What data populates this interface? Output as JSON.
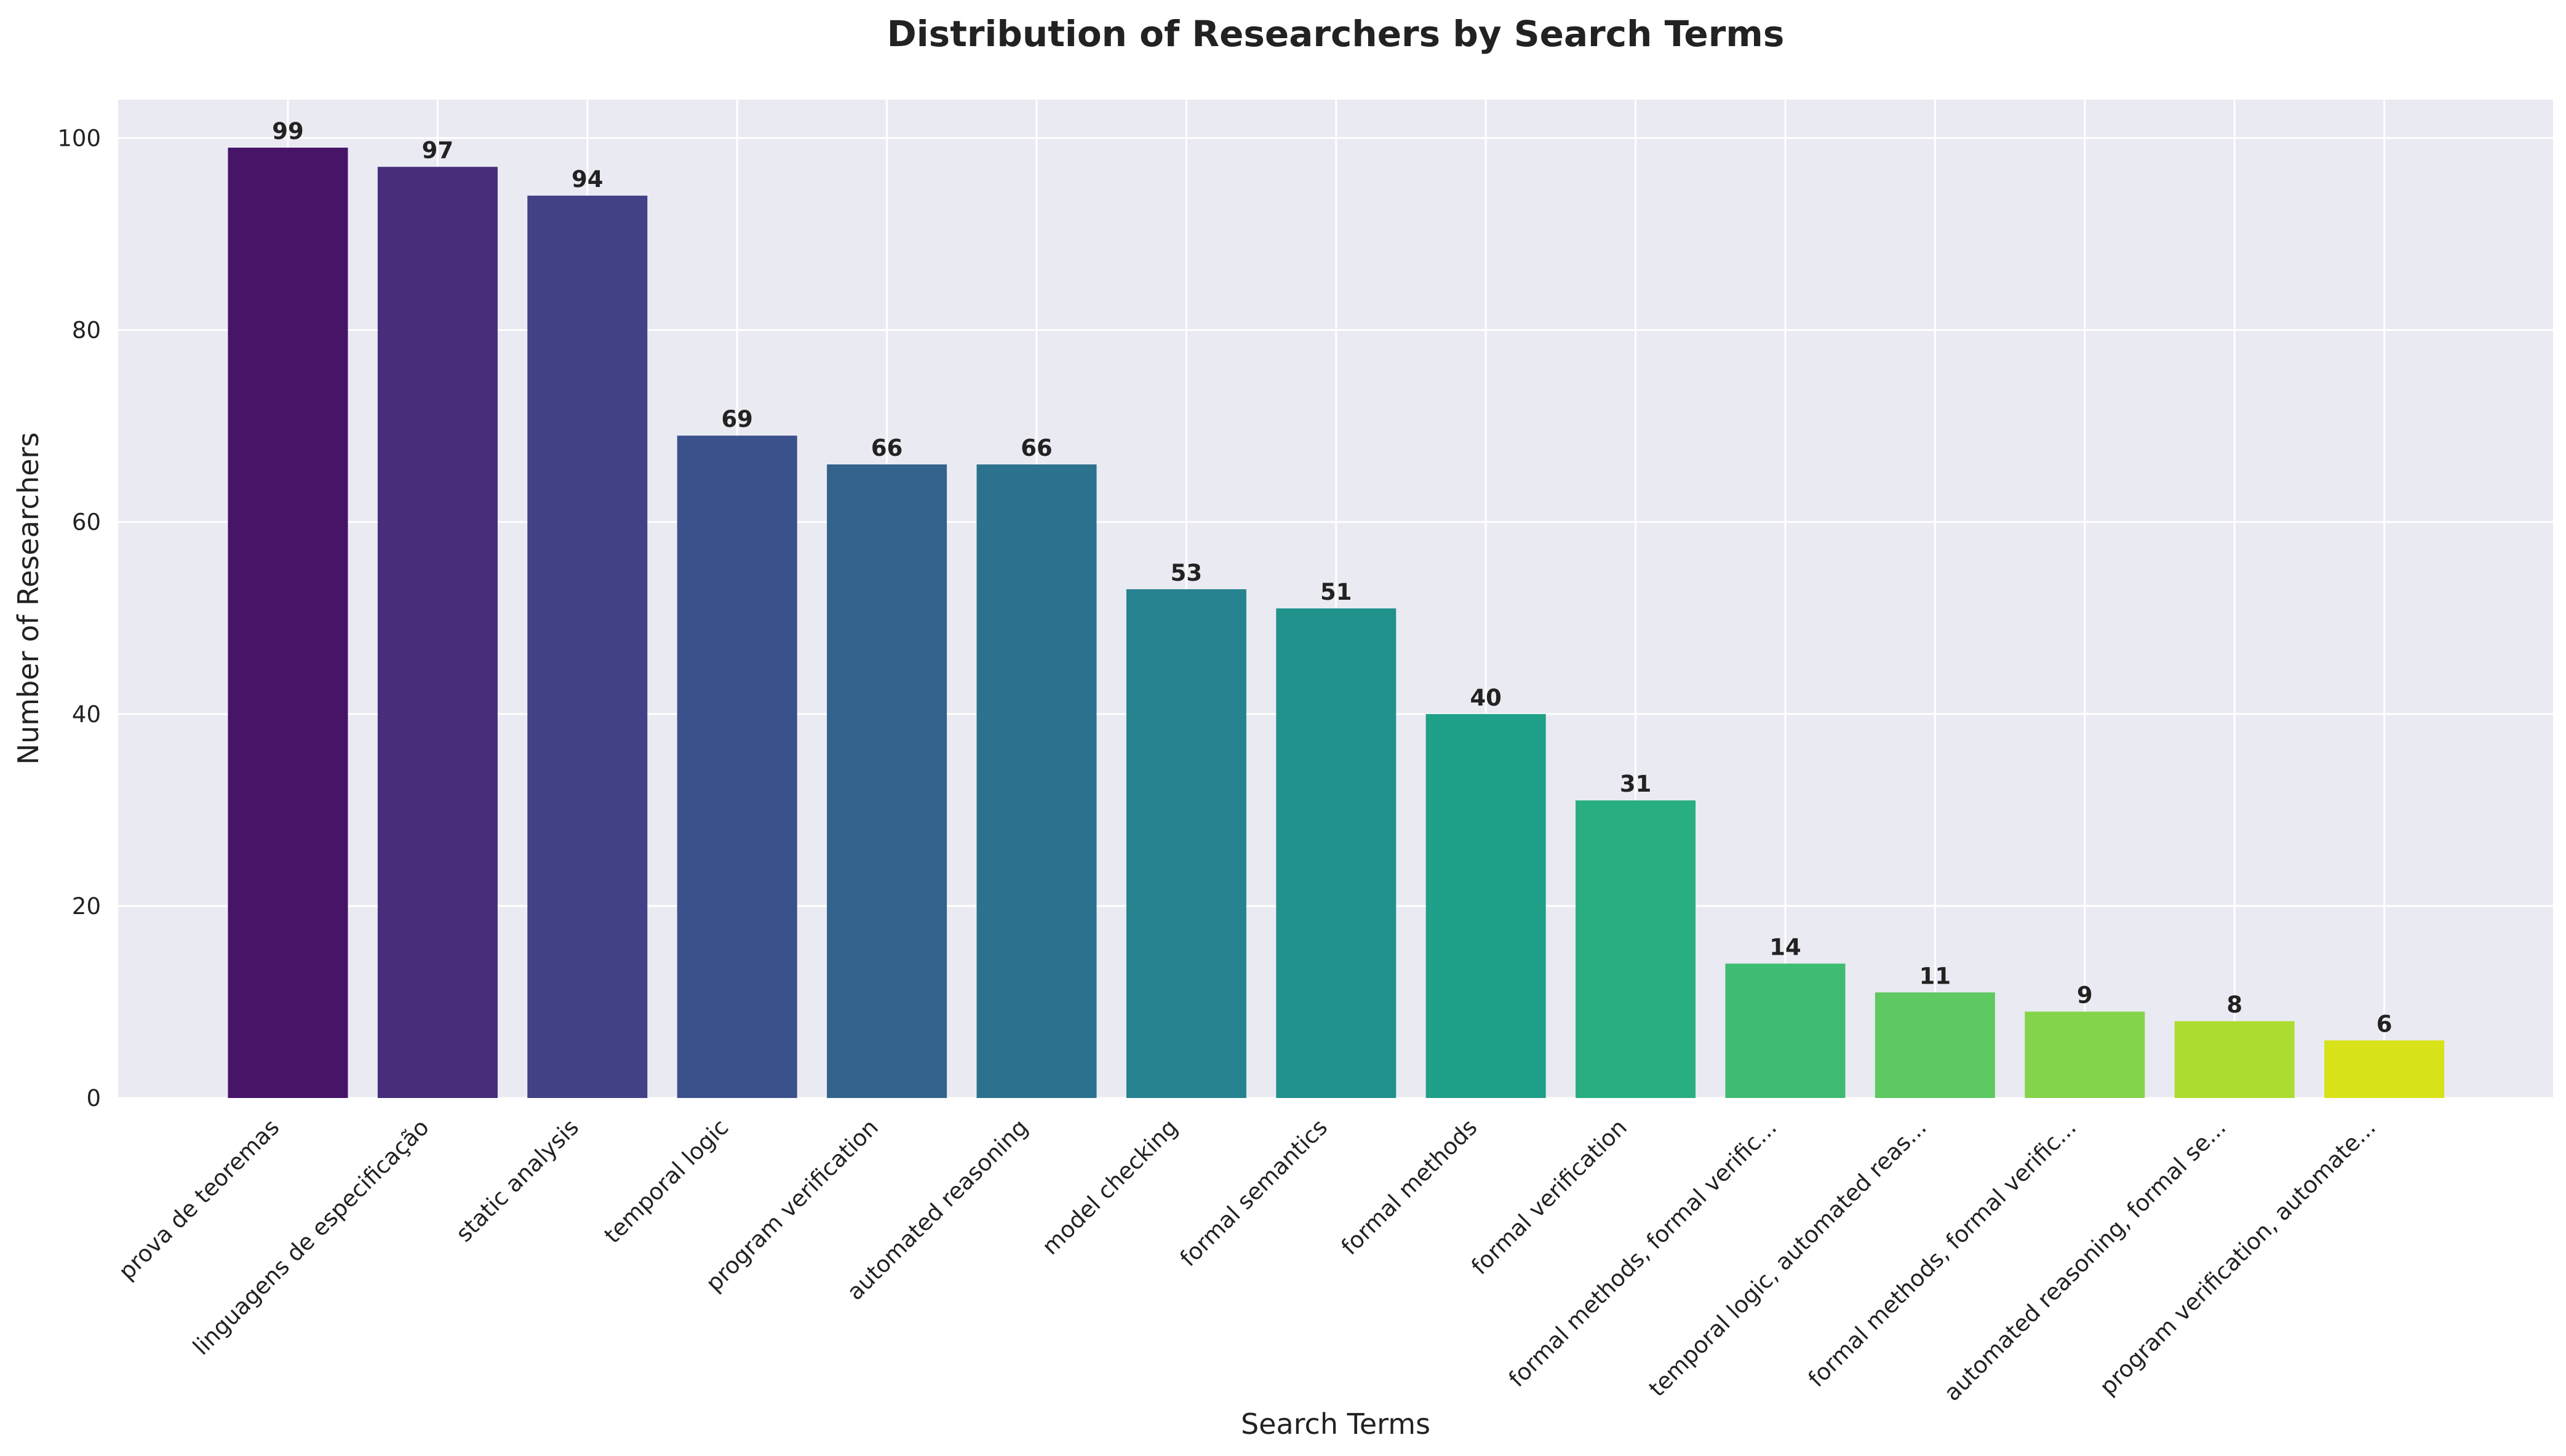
{
  "chart_data": {
    "type": "bar",
    "title": "Distribution of Researchers by Search Terms",
    "xlabel": "Search Terms",
    "ylabel": "Number of Researchers",
    "ylim": [
      0,
      104
    ],
    "yticks": [
      0,
      20,
      40,
      60,
      80,
      100
    ],
    "grid": true,
    "categories": [
      "prova de teoremas",
      "linguagens de especificação",
      "static analysis",
      "temporal logic",
      "program verification",
      "automated reasoning",
      "model checking",
      "formal semantics",
      "formal methods",
      "formal verification",
      "formal methods, formal verific...",
      "temporal logic, automated reas...",
      "formal methods, formal verific...",
      "automated reasoning, formal se...",
      "program verification, automate..."
    ],
    "values": [
      99,
      97,
      94,
      69,
      66,
      66,
      53,
      51,
      40,
      31,
      14,
      11,
      9,
      8,
      6
    ],
    "colors": [
      "#471468",
      "#472d7b",
      "#424086",
      "#3b518b",
      "#33628d",
      "#2c728e",
      "#26828e",
      "#21918c",
      "#1fa088",
      "#28ae80",
      "#3fbc73",
      "#5ec962",
      "#84d44b",
      "#addc30",
      "#d8e219"
    ]
  }
}
